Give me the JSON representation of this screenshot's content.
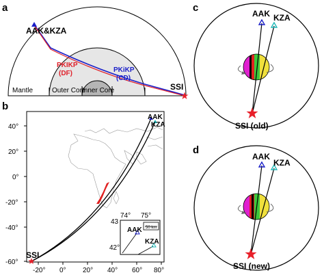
{
  "panel_a": {
    "label": "a",
    "station": "AAK&KZA",
    "source": "SSI",
    "layers": {
      "mantle": "Mantle",
      "outer_core": "Outer Core",
      "inner_core": "Inner Core"
    },
    "phase_df": {
      "name": "PKIKP",
      "code": "(DF)",
      "color": "#e0202a"
    },
    "phase_cd": {
      "name": "PKiKP",
      "code": "(CD)",
      "color": "#1a1fc8"
    }
  },
  "panel_b": {
    "label": "b",
    "station_1": "AAK",
    "station_2": "KZA",
    "source": "SSI",
    "x_ticks": [
      "-20°",
      "0°",
      "20°",
      "40°",
      "60°",
      "80°"
    ],
    "y_ticks": [
      "40°",
      "20°",
      "0°",
      "-20°",
      "-40°",
      "-60°"
    ],
    "inset": {
      "x_ticks": [
        "74°",
        "75°"
      ],
      "y_ticks": [
        "43",
        "42°"
      ],
      "scale": "50 km",
      "station_1": "AAK",
      "station_2": "KZA"
    }
  },
  "panel_c": {
    "label": "c",
    "station_1": "AAK",
    "station_2": "KZA",
    "source": "SSI (old)"
  },
  "panel_d": {
    "label": "d",
    "station_1": "AAK",
    "station_2": "KZA",
    "source": "SSI (new)"
  },
  "colors": {
    "source_star": "#e8202a",
    "aak": "#1a1fc8",
    "kza": "#20b8b8",
    "magenta": "#e020d0",
    "green": "#3cc83c",
    "yellow": "#f0e03c",
    "red": "#e02020"
  }
}
